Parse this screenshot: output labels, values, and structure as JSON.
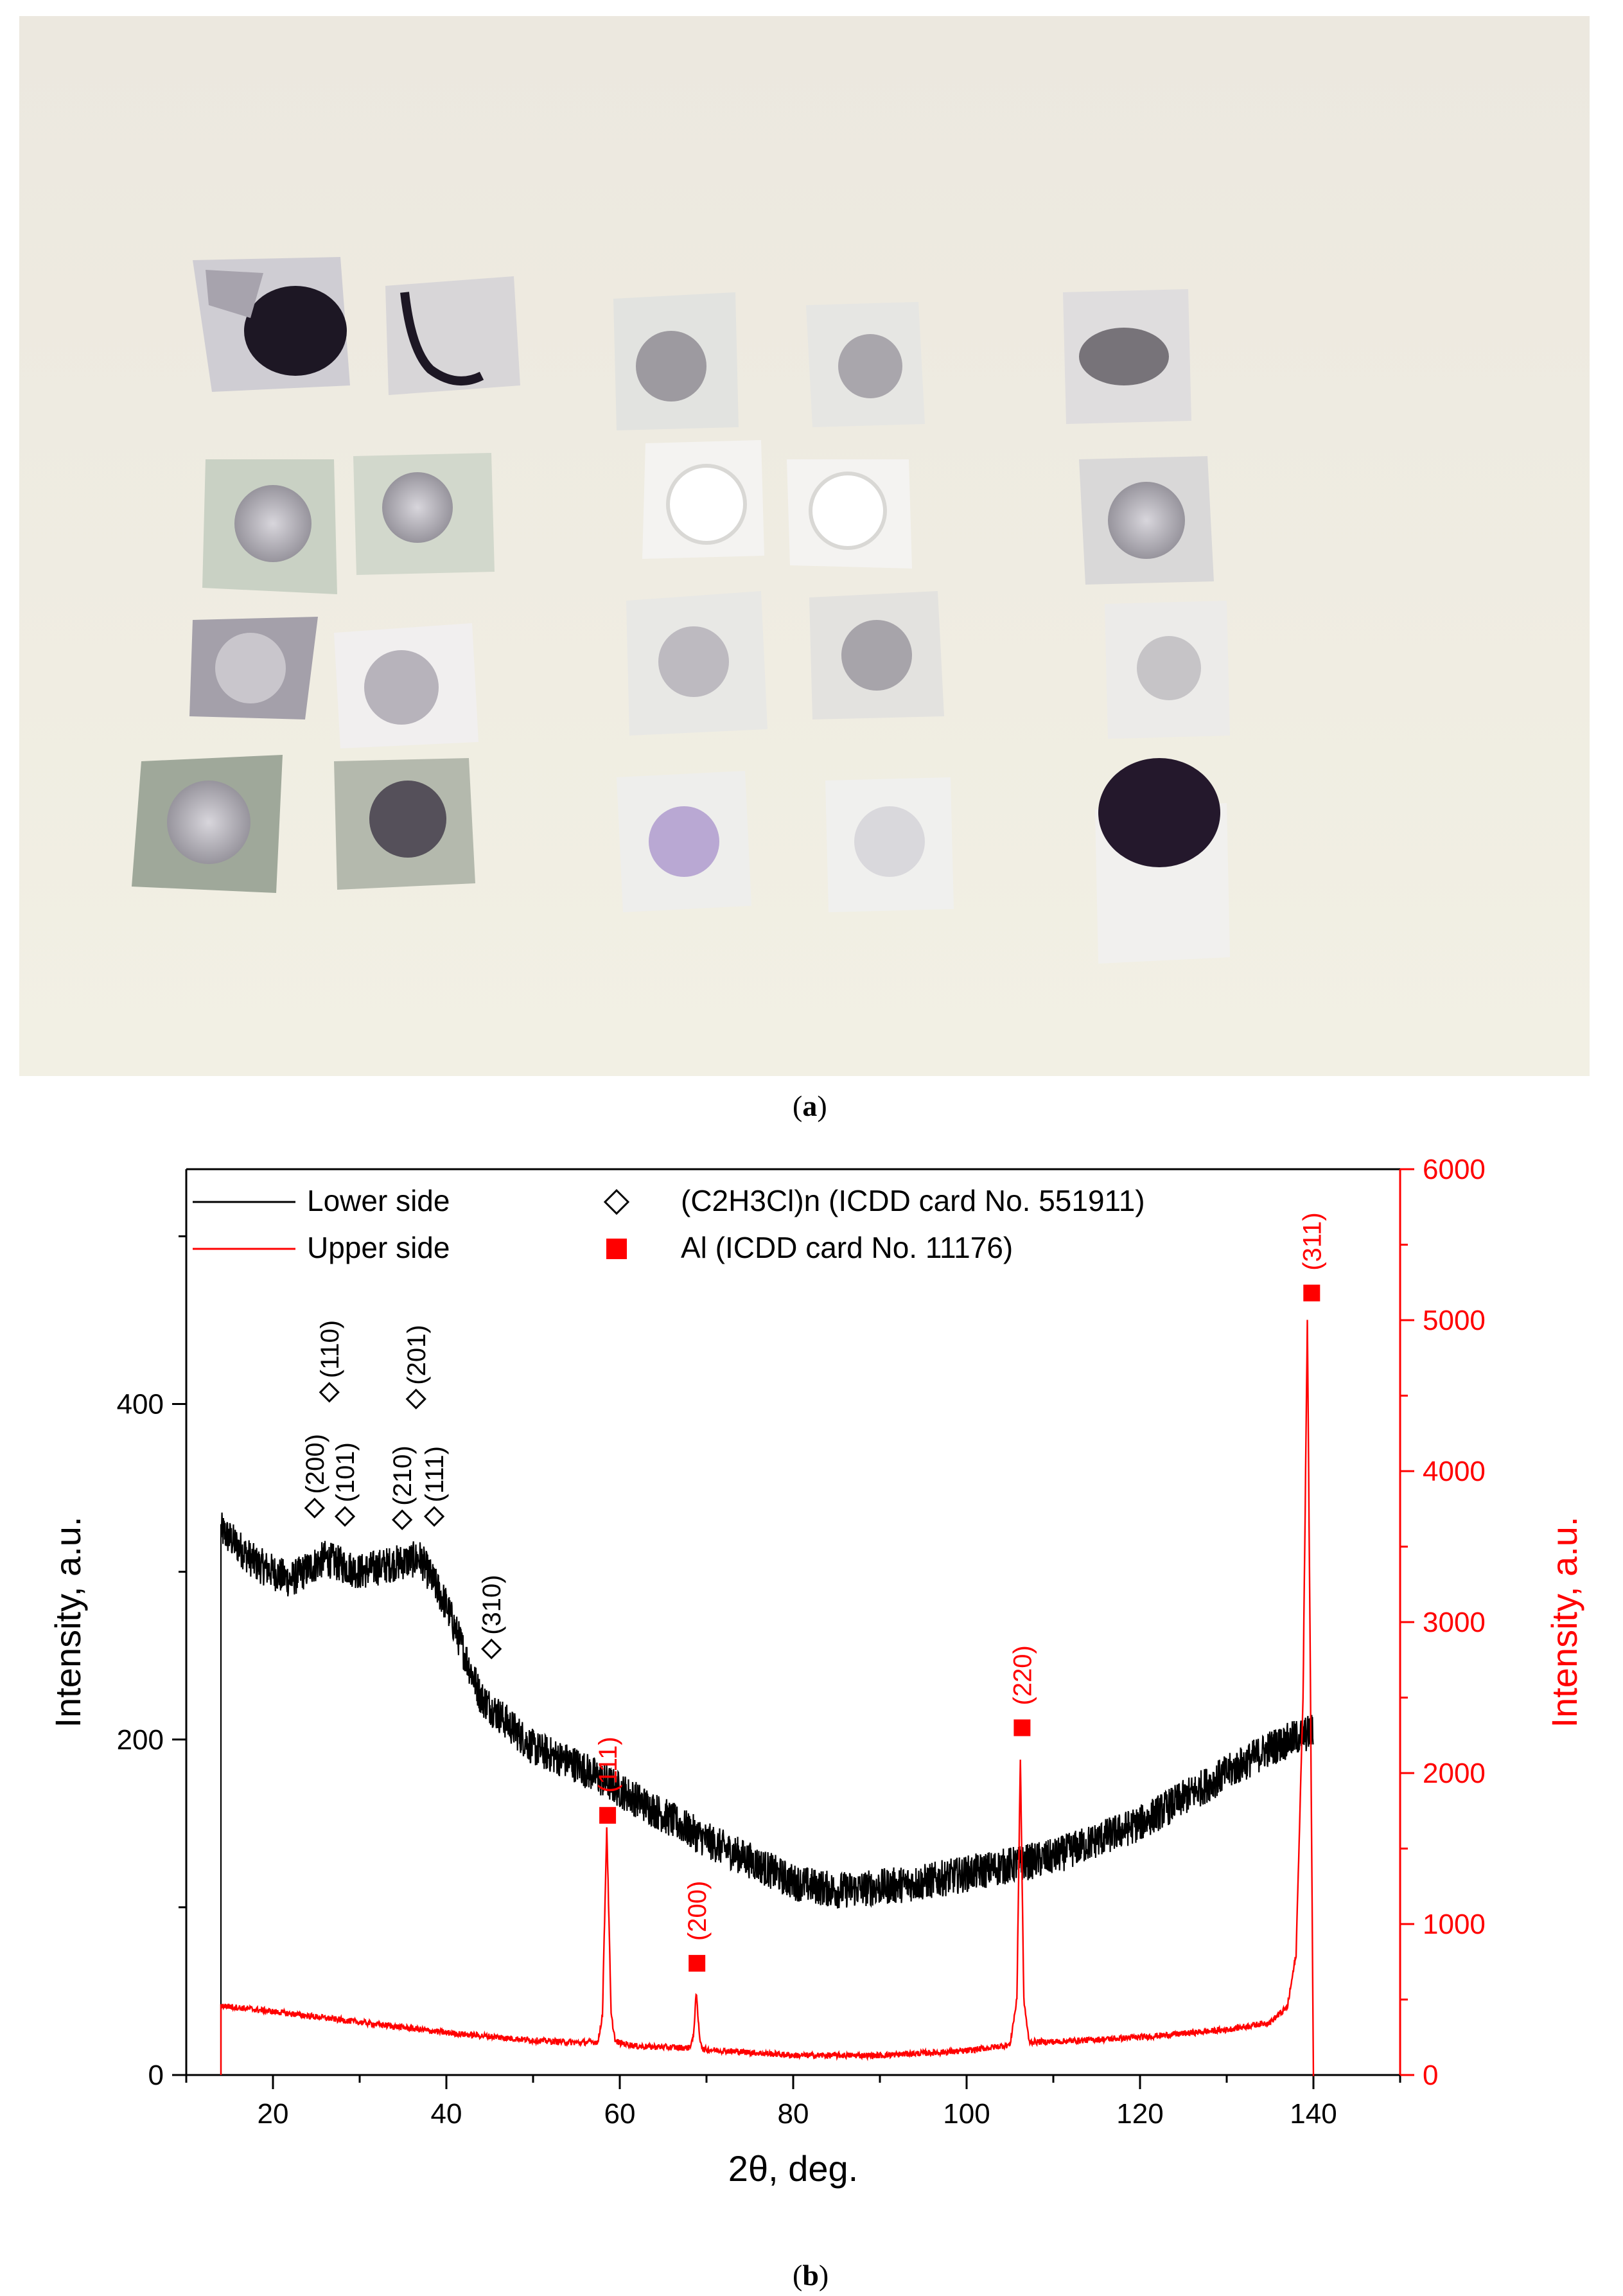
{
  "panel_a": {
    "caption_open": "(",
    "caption_letter": "a",
    "caption_close": ")"
  },
  "panel_b": {
    "caption_open": "(",
    "caption_letter": "b",
    "caption_close": ")"
  },
  "colors": {
    "lower": "#000000",
    "upper": "#ff0000",
    "photo_bg_top": "#efeee4",
    "photo_bg_bottom": "#f3f1e6"
  },
  "chart_data": {
    "type": "line",
    "xlabel": "2θ, deg.",
    "ylabel_left": "Intensity, a.u.",
    "ylabel_right": "Intensity, a.u.",
    "xlim": [
      10,
      150
    ],
    "ylim_left": [
      0,
      540
    ],
    "ylim_right": [
      0,
      6000
    ],
    "x_ticks": [
      20,
      40,
      60,
      80,
      100,
      120,
      140
    ],
    "y_left_ticks": [
      0,
      200,
      400
    ],
    "y_right_ticks": [
      0,
      1000,
      2000,
      3000,
      4000,
      5000,
      6000
    ],
    "legend_placement": "top",
    "legend": [
      {
        "label": "Lower side",
        "marker": "line",
        "color": "#000000"
      },
      {
        "label": "Upper side",
        "marker": "line",
        "color": "#ff0000"
      },
      {
        "label": "(C2H3Cl)n (ICDD card No. 551911)",
        "marker": "open-diamond",
        "color": "#000000"
      },
      {
        "label": "Al (ICDD card No. 11176)",
        "marker": "filled-square",
        "color": "#ff0000"
      }
    ],
    "series": [
      {
        "name": "Lower side",
        "axis": "left",
        "color": "#000000",
        "x": [
          14,
          15,
          18,
          22,
          26,
          30,
          34,
          37,
          40,
          44,
          50,
          55,
          60,
          65,
          70,
          75,
          80,
          85,
          90,
          95,
          100,
          105,
          110,
          115,
          120,
          125,
          130,
          135,
          140
        ],
        "y": [
          325,
          320,
          305,
          295,
          308,
          300,
          305,
          308,
          280,
          225,
          195,
          185,
          170,
          155,
          140,
          128,
          115,
          110,
          112,
          115,
          120,
          125,
          130,
          140,
          150,
          165,
          180,
          195,
          205
        ]
      },
      {
        "name": "Upper side",
        "axis": "right",
        "color": "#ff0000",
        "x": [
          14,
          20,
          30,
          40,
          50,
          55,
          57.5,
          58.0,
          58.5,
          59.0,
          59.5,
          62,
          68,
          68.5,
          68.8,
          69.2,
          69.6,
          75,
          80,
          90,
          100,
          105,
          105.8,
          106.2,
          106.6,
          107.2,
          110,
          120,
          130,
          135,
          137,
          138,
          138.8,
          139.3,
          139.6,
          140.0
        ],
        "y": [
          460,
          420,
          350,
          280,
          230,
          215,
          220,
          400,
          1650,
          400,
          220,
          190,
          180,
          250,
          550,
          250,
          170,
          150,
          130,
          130,
          160,
          200,
          500,
          2100,
          500,
          220,
          220,
          250,
          300,
          350,
          450,
          800,
          2500,
          5000,
          3000,
          0
        ]
      }
    ],
    "annotations_diamond": [
      {
        "label": "(200)",
        "x": 24.8,
        "y": 338
      },
      {
        "label": "(110)",
        "x": 26.5,
        "y": 407
      },
      {
        "label": "(101)",
        "x": 28.3,
        "y": 333
      },
      {
        "label": "(210)",
        "x": 34.9,
        "y": 331
      },
      {
        "label": "(201)",
        "x": 36.5,
        "y": 403
      },
      {
        "label": "(111)",
        "x": 38.6,
        "y": 333
      },
      {
        "label": "(310)",
        "x": 45.2,
        "y": 254
      }
    ],
    "annotations_square": [
      {
        "label": "(111)",
        "x": 58.6,
        "y": 1720
      },
      {
        "label": "(200)",
        "x": 68.9,
        "y": 740
      },
      {
        "label": "(220)",
        "x": 106.4,
        "y": 2300
      },
      {
        "label": "(311)",
        "x": 139.8,
        "y": 5180
      }
    ]
  }
}
